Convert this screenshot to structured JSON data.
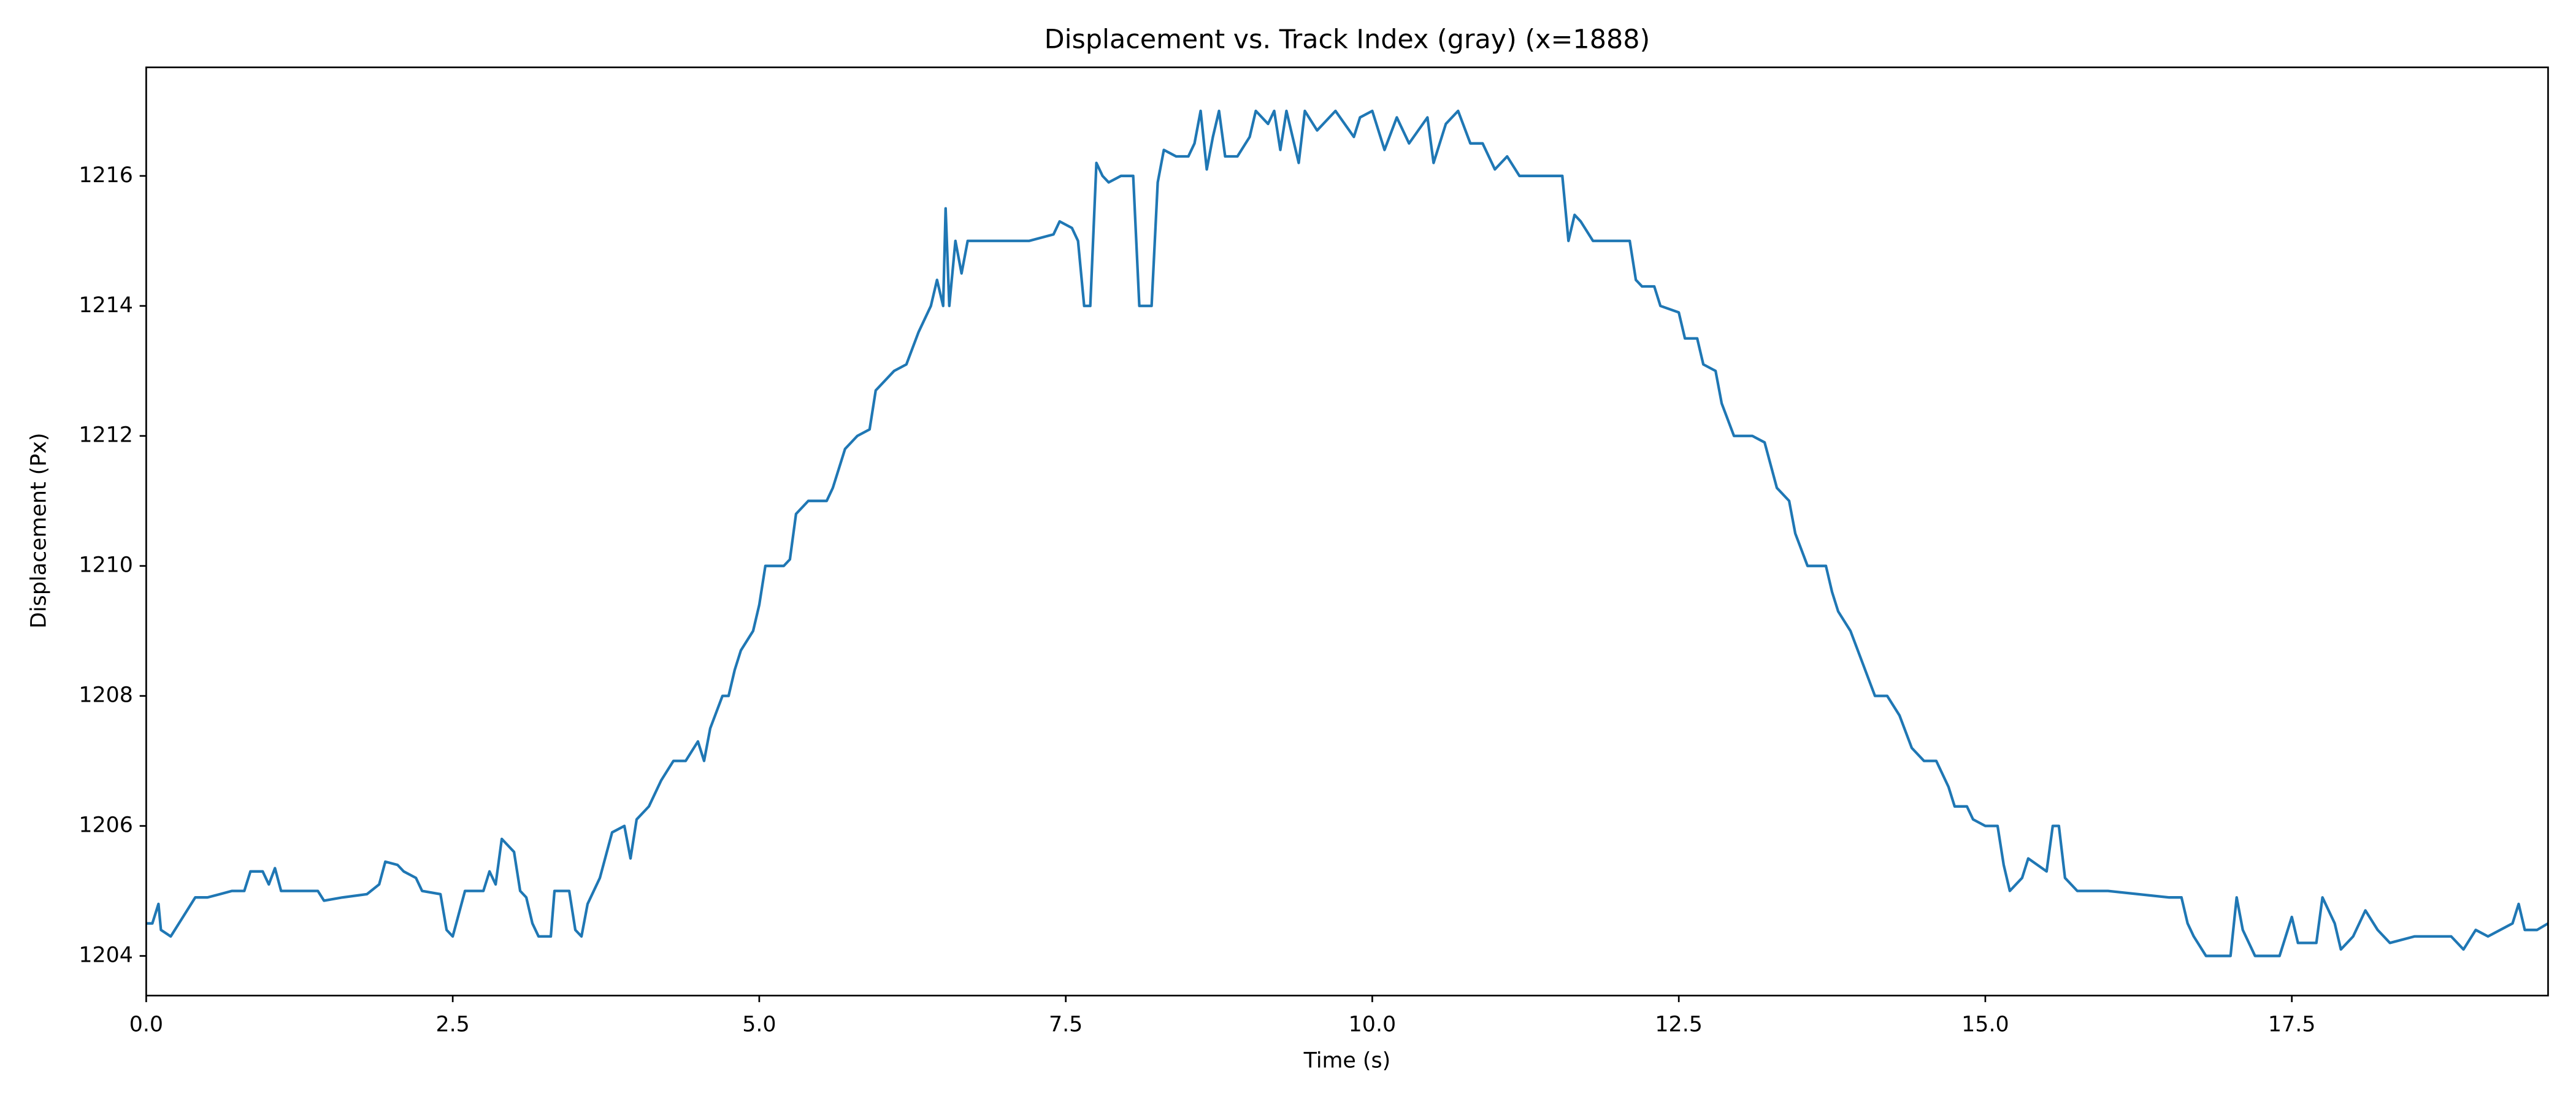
{
  "chart_data": {
    "type": "line",
    "title": "Displacement vs. Track Index (gray) (x=1888)",
    "x_label": "Time (s)",
    "y_label": "Displacement (Px)",
    "xlim": [
      0,
      19.59
    ],
    "ylim": [
      1203.39,
      1217.67
    ],
    "xticks": [
      {
        "value": 0,
        "label": "0.0"
      },
      2.5,
      {
        "value": 5,
        "label": "5.0"
      },
      7.5,
      {
        "value": 10,
        "label": "10.0"
      },
      12.5,
      {
        "value": 15,
        "label": "15.0"
      },
      17.5
    ],
    "yticks": [
      1204,
      1206,
      1208,
      1210,
      1212,
      1214,
      1216
    ],
    "grid": false,
    "series": [
      {
        "color": "#1f77b4",
        "x": [
          0.0,
          0.05,
          0.1,
          0.12,
          0.2,
          0.3,
          0.4,
          0.5,
          0.6,
          0.7,
          0.8,
          0.85,
          0.95,
          1.0,
          1.05,
          1.1,
          1.3,
          1.4,
          1.45,
          1.6,
          1.8,
          1.9,
          1.95,
          2.05,
          2.1,
          2.2,
          2.25,
          2.4,
          2.45,
          2.5,
          2.6,
          2.75,
          2.8,
          2.85,
          2.9,
          3.0,
          3.05,
          3.1,
          3.15,
          3.2,
          3.3,
          3.33,
          3.45,
          3.5,
          3.55,
          3.6,
          3.7,
          3.8,
          3.9,
          3.95,
          4.0,
          4.1,
          4.2,
          4.3,
          4.4,
          4.5,
          4.55,
          4.6,
          4.7,
          4.75,
          4.8,
          4.85,
          4.95,
          5.0,
          5.05,
          5.2,
          5.25,
          5.3,
          5.4,
          5.55,
          5.6,
          5.7,
          5.8,
          5.9,
          5.95,
          6.1,
          6.2,
          6.3,
          6.4,
          6.45,
          6.5,
          6.52,
          6.55,
          6.6,
          6.65,
          6.7,
          6.8,
          7.0,
          7.2,
          7.4,
          7.45,
          7.55,
          7.6,
          7.65,
          7.7,
          7.75,
          7.8,
          7.85,
          7.95,
          8.05,
          8.1,
          8.15,
          8.2,
          8.25,
          8.3,
          8.4,
          8.5,
          8.55,
          8.6,
          8.65,
          8.7,
          8.75,
          8.8,
          8.9,
          9.0,
          9.05,
          9.15,
          9.2,
          9.25,
          9.3,
          9.4,
          9.45,
          9.55,
          9.7,
          9.85,
          9.9,
          10.0,
          10.1,
          10.2,
          10.3,
          10.45,
          10.5,
          10.6,
          10.7,
          10.8,
          10.9,
          11.0,
          11.1,
          11.2,
          11.3,
          11.4,
          11.45,
          11.55,
          11.6,
          11.65,
          11.7,
          11.8,
          12.0,
          12.1,
          12.15,
          12.2,
          12.3,
          12.35,
          12.5,
          12.55,
          12.65,
          12.7,
          12.8,
          12.85,
          12.95,
          13.1,
          13.2,
          13.3,
          13.4,
          13.45,
          13.55,
          13.7,
          13.75,
          13.8,
          13.9,
          14.0,
          14.1,
          14.2,
          14.3,
          14.4,
          14.5,
          14.6,
          14.7,
          14.75,
          14.85,
          14.9,
          15.0,
          15.1,
          15.15,
          15.2,
          15.3,
          15.35,
          15.5,
          15.55,
          15.6,
          15.65,
          15.75,
          16.0,
          16.5,
          16.6,
          16.65,
          16.7,
          16.8,
          17.0,
          17.05,
          17.1,
          17.2,
          17.4,
          17.5,
          17.55,
          17.7,
          17.75,
          17.85,
          17.9,
          18.0,
          18.1,
          18.2,
          18.3,
          18.5,
          18.8,
          18.9,
          19.0,
          19.1,
          19.3,
          19.35,
          19.4,
          19.5,
          19.59
        ],
        "values": [
          1204.5,
          1204.5,
          1204.8,
          1204.4,
          1204.3,
          1204.6,
          1204.9,
          1204.9,
          1204.95,
          1205,
          1205,
          1205.3,
          1205.3,
          1205.1,
          1205.35,
          1205,
          1205,
          1205,
          1204.85,
          1204.9,
          1204.95,
          1205.1,
          1205.45,
          1205.4,
          1205.3,
          1205.2,
          1205,
          1204.95,
          1204.4,
          1204.3,
          1205,
          1205,
          1205.3,
          1205.1,
          1205.8,
          1205.6,
          1205,
          1204.9,
          1204.5,
          1204.3,
          1204.3,
          1205,
          1205,
          1204.4,
          1204.3,
          1204.8,
          1205.2,
          1205.9,
          1206,
          1205.5,
          1206.1,
          1206.3,
          1206.7,
          1207,
          1207,
          1207.3,
          1207,
          1207.5,
          1208,
          1208,
          1208.4,
          1208.7,
          1209,
          1209.4,
          1210,
          1210,
          1210.1,
          1210.8,
          1211,
          1211,
          1211.2,
          1211.8,
          1212,
          1212.1,
          1212.7,
          1213,
          1213.1,
          1213.6,
          1214,
          1214.4,
          1214,
          1215.5,
          1214,
          1215,
          1214.5,
          1215,
          1215,
          1215,
          1215,
          1215.1,
          1215.3,
          1215.2,
          1215,
          1214,
          1214,
          1216.2,
          1216,
          1215.9,
          1216,
          1216,
          1214,
          1214,
          1214,
          1215.9,
          1216.4,
          1216.3,
          1216.3,
          1216.5,
          1217,
          1216.1,
          1216.6,
          1217,
          1216.3,
          1216.3,
          1216.6,
          1217,
          1216.8,
          1217,
          1216.4,
          1217,
          1216.2,
          1217,
          1216.7,
          1217,
          1216.6,
          1216.9,
          1217,
          1216.4,
          1216.9,
          1216.5,
          1216.9,
          1216.2,
          1216.8,
          1217,
          1216.5,
          1216.5,
          1216.1,
          1216.3,
          1216,
          1216,
          1216,
          1216,
          1216,
          1215,
          1215.4,
          1215.3,
          1215,
          1215,
          1215,
          1214.4,
          1214.3,
          1214.3,
          1214,
          1213.9,
          1213.5,
          1213.5,
          1213.1,
          1213,
          1212.5,
          1212,
          1212,
          1211.9,
          1211.2,
          1211,
          1210.5,
          1210,
          1210,
          1209.6,
          1209.3,
          1209.0,
          1208.5,
          1208,
          1208,
          1207.7,
          1207.2,
          1207,
          1207,
          1206.6,
          1206.3,
          1206.3,
          1206.1,
          1206,
          1206,
          1205.4,
          1205,
          1205.2,
          1205.5,
          1205.3,
          1206,
          1206,
          1205.2,
          1205,
          1205,
          1204.9,
          1204.9,
          1204.5,
          1204.3,
          1204,
          1204,
          1204.9,
          1204.4,
          1204,
          1204,
          1204.6,
          1204.2,
          1204.2,
          1204.9,
          1204.5,
          1204.1,
          1204.3,
          1204.7,
          1204.4,
          1204.2,
          1204.3,
          1204.3,
          1204.1,
          1204.4,
          1204.3,
          1204.5,
          1204.8,
          1204.4,
          1204.4,
          1204.5
        ]
      }
    ]
  }
}
